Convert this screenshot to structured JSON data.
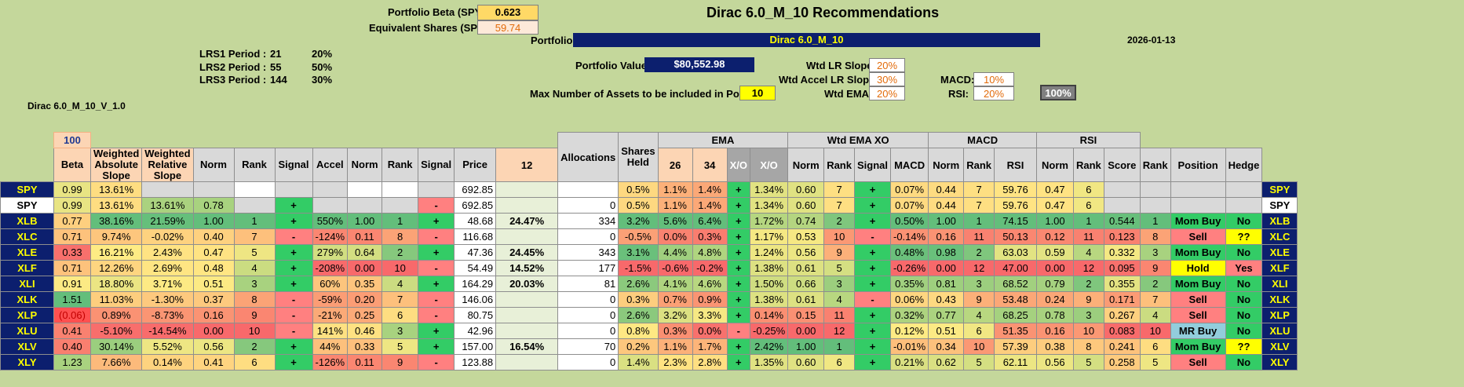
{
  "title": "Dirac 6.0_M_10 Recommendations",
  "date": "2026-01-13",
  "portfolio_beta_label": "Portfolio Beta (SPY):",
  "portfolio_beta": "0.623",
  "equiv_shares_label": "Equivalent Shares (SPY):",
  "equiv_shares": "59.74",
  "portfolio_label": "Portfolio:",
  "portfolio_name": "Dirac 6.0_M_10",
  "portfolio_value_label": "Portfolio Value:",
  "portfolio_value": "$80,552.98",
  "max_assets_label": "Max Number of Assets to be included in Portfolio:",
  "max_assets": "10",
  "version": "Dirac 6.0_M_10_V_1.0",
  "lrs": [
    {
      "label": "LRS1 Period :",
      "period": "21",
      "pct": "20%"
    },
    {
      "label": "LRS2 Period :",
      "period": "55",
      "pct": "50%"
    },
    {
      "label": "LRS3 Period :",
      "period": "144",
      "pct": "30%"
    }
  ],
  "weights": {
    "wtd_lr_slope_label": "Wtd LR Slope:",
    "wtd_lr_slope": "20%",
    "wtd_accel_label": "Wtd Accel LR Slope:",
    "wtd_accel": "30%",
    "wtd_ema_label": "Wtd EMA:",
    "wtd_ema": "20%",
    "macd_label": "MACD:",
    "macd": "10%",
    "rsi_label": "RSI:",
    "rsi": "20%",
    "total": "100%"
  },
  "headers": {
    "hundred": "100",
    "beta": "Beta",
    "wabs": "Weighted Absolute Slope",
    "wrel": "Weighted Relative Slope",
    "norm": "Norm",
    "rank": "Rank",
    "signal": "Signal",
    "accel": "Accel",
    "price": "Price",
    "alloc": "Allocations",
    "shares": "Shares Held",
    "ema": "EMA",
    "e12": "12",
    "e26": "26",
    "e34": "34",
    "xo": "X/O",
    "wtdema": "Wtd EMA XO",
    "macd": "MACD",
    "rsi": "RSI",
    "score": "Score",
    "position": "Position",
    "hedge": "Hedge"
  },
  "rows": [
    {
      "t": "SPY",
      "beta": "0.99",
      "wabs": "13.61%",
      "wrel": "",
      "n1": "",
      "r1": "",
      "s1": "",
      "acc": "",
      "n2": "",
      "r2": "",
      "s2": "",
      "price": "692.85",
      "alloc": "",
      "sh": "",
      "e12": "0.5%",
      "e26": "1.1%",
      "e34": "1.4%",
      "xo": "+",
      "wxo": "1.34%",
      "n3": "0.60",
      "r3": "7",
      "s3": "+",
      "macd": "0.07%",
      "n4": "0.44",
      "r4": "7",
      "rsi": "59.76",
      "n5": "0.47",
      "r5": "6",
      "score": "",
      "rk": "",
      "pos": "",
      "hedge": "",
      "top": true
    },
    {
      "t": "SPY",
      "beta": "0.99",
      "wabs": "13.61%",
      "wrel": "13.61%",
      "n1": "0.78",
      "r1": "",
      "s1": "+",
      "acc": "",
      "n2": "",
      "r2": "",
      "s2": "-",
      "price": "692.85",
      "alloc": "",
      "sh": "0",
      "e12": "0.5%",
      "e26": "1.1%",
      "e34": "1.4%",
      "xo": "+",
      "wxo": "1.34%",
      "n3": "0.60",
      "r3": "7",
      "s3": "+",
      "macd": "0.07%",
      "n4": "0.44",
      "r4": "7",
      "rsi": "59.76",
      "n5": "0.47",
      "r5": "6",
      "score": "",
      "rk": "",
      "pos": "",
      "hedge": "",
      "white": true
    },
    {
      "t": "XLB",
      "beta": "0.77",
      "wabs": "38.16%",
      "wrel": "21.59%",
      "n1": "1.00",
      "r1": "1",
      "s1": "+",
      "acc": "550%",
      "n2": "1.00",
      "r2": "1",
      "s2": "+",
      "price": "48.68",
      "alloc": "24.47%",
      "sh": "334",
      "e12": "3.2%",
      "e26": "5.6%",
      "e34": "6.4%",
      "xo": "+",
      "wxo": "1.72%",
      "n3": "0.74",
      "r3": "2",
      "s3": "+",
      "macd": "0.50%",
      "n4": "1.00",
      "r4": "1",
      "rsi": "74.15",
      "n5": "1.00",
      "r5": "1",
      "score": "0.544",
      "rk": "1",
      "pos": "Mom Buy",
      "hedge": "No"
    },
    {
      "t": "XLC",
      "beta": "0.71",
      "wabs": "9.74%",
      "wrel": "-0.02%",
      "n1": "0.40",
      "r1": "7",
      "s1": "-",
      "acc": "-124%",
      "n2": "0.11",
      "r2": "8",
      "s2": "-",
      "price": "116.68",
      "alloc": "",
      "sh": "0",
      "e12": "-0.5%",
      "e26": "0.0%",
      "e34": "0.3%",
      "xo": "+",
      "wxo": "1.17%",
      "n3": "0.53",
      "r3": "10",
      "s3": "-",
      "macd": "-0.14%",
      "n4": "0.16",
      "r4": "11",
      "rsi": "50.13",
      "n5": "0.12",
      "r5": "11",
      "score": "0.123",
      "rk": "8",
      "pos": "Sell",
      "hedge": "??"
    },
    {
      "t": "XLE",
      "beta": "0.33",
      "wabs": "16.21%",
      "wrel": "2.43%",
      "n1": "0.47",
      "r1": "5",
      "s1": "+",
      "acc": "279%",
      "n2": "0.64",
      "r2": "2",
      "s2": "+",
      "price": "47.36",
      "alloc": "24.45%",
      "sh": "343",
      "e12": "3.1%",
      "e26": "4.4%",
      "e34": "4.8%",
      "xo": "+",
      "wxo": "1.24%",
      "n3": "0.56",
      "r3": "9",
      "s3": "+",
      "macd": "0.48%",
      "n4": "0.98",
      "r4": "2",
      "rsi": "63.03",
      "n5": "0.59",
      "r5": "4",
      "score": "0.332",
      "rk": "3",
      "pos": "Mom Buy",
      "hedge": "No"
    },
    {
      "t": "XLF",
      "beta": "0.71",
      "wabs": "12.26%",
      "wrel": "2.69%",
      "n1": "0.48",
      "r1": "4",
      "s1": "+",
      "acc": "-208%",
      "n2": "0.00",
      "r2": "10",
      "s2": "-",
      "price": "54.49",
      "alloc": "14.52%",
      "sh": "177",
      "e12": "-1.5%",
      "e26": "-0.6%",
      "e34": "-0.2%",
      "xo": "+",
      "wxo": "1.38%",
      "n3": "0.61",
      "r3": "5",
      "s3": "+",
      "macd": "-0.26%",
      "n4": "0.00",
      "r4": "12",
      "rsi": "47.00",
      "n5": "0.00",
      "r5": "12",
      "score": "0.095",
      "rk": "9",
      "pos": "Hold",
      "hedge": "Yes"
    },
    {
      "t": "XLI",
      "beta": "0.91",
      "wabs": "18.80%",
      "wrel": "3.71%",
      "n1": "0.51",
      "r1": "3",
      "s1": "+",
      "acc": "60%",
      "n2": "0.35",
      "r2": "4",
      "s2": "+",
      "price": "164.29",
      "alloc": "20.03%",
      "sh": "81",
      "e12": "2.6%",
      "e26": "4.1%",
      "e34": "4.6%",
      "xo": "+",
      "wxo": "1.50%",
      "n3": "0.66",
      "r3": "3",
      "s3": "+",
      "macd": "0.35%",
      "n4": "0.81",
      "r4": "3",
      "rsi": "68.52",
      "n5": "0.79",
      "r5": "2",
      "score": "0.355",
      "rk": "2",
      "pos": "Mom Buy",
      "hedge": "No"
    },
    {
      "t": "XLK",
      "beta": "1.51",
      "wabs": "11.03%",
      "wrel": "-1.30%",
      "n1": "0.37",
      "r1": "8",
      "s1": "-",
      "acc": "-59%",
      "n2": "0.20",
      "r2": "7",
      "s2": "-",
      "price": "146.06",
      "alloc": "",
      "sh": "0",
      "e12": "0.3%",
      "e26": "0.7%",
      "e34": "0.9%",
      "xo": "+",
      "wxo": "1.38%",
      "n3": "0.61",
      "r3": "4",
      "s3": "-",
      "macd": "0.06%",
      "n4": "0.43",
      "r4": "9",
      "rsi": "53.48",
      "n5": "0.24",
      "r5": "9",
      "score": "0.171",
      "rk": "7",
      "pos": "Sell",
      "hedge": "No"
    },
    {
      "t": "XLP",
      "beta": "(0.06)",
      "wabs": "0.89%",
      "wrel": "-8.73%",
      "n1": "0.16",
      "r1": "9",
      "s1": "-",
      "acc": "-21%",
      "n2": "0.25",
      "r2": "6",
      "s2": "-",
      "price": "80.75",
      "alloc": "",
      "sh": "0",
      "e12": "2.6%",
      "e26": "3.2%",
      "e34": "3.3%",
      "xo": "+",
      "wxo": "0.14%",
      "n3": "0.15",
      "r3": "11",
      "s3": "+",
      "macd": "0.32%",
      "n4": "0.77",
      "r4": "4",
      "rsi": "68.25",
      "n5": "0.78",
      "r5": "3",
      "score": "0.267",
      "rk": "4",
      "pos": "Sell",
      "hedge": "No"
    },
    {
      "t": "XLU",
      "beta": "0.41",
      "wabs": "-5.10%",
      "wrel": "-14.54%",
      "n1": "0.00",
      "r1": "10",
      "s1": "-",
      "acc": "141%",
      "n2": "0.46",
      "r2": "3",
      "s2": "+",
      "price": "42.96",
      "alloc": "",
      "sh": "0",
      "e12": "0.8%",
      "e26": "0.3%",
      "e34": "0.0%",
      "xo": "-",
      "wxo": "-0.25%",
      "n3": "0.00",
      "r3": "12",
      "s3": "+",
      "macd": "0.12%",
      "n4": "0.51",
      "r4": "6",
      "rsi": "51.35",
      "n5": "0.16",
      "r5": "10",
      "score": "0.083",
      "rk": "10",
      "pos": "MR Buy",
      "hedge": "No"
    },
    {
      "t": "XLV",
      "beta": "0.40",
      "wabs": "30.14%",
      "wrel": "5.52%",
      "n1": "0.56",
      "r1": "2",
      "s1": "+",
      "acc": "44%",
      "n2": "0.33",
      "r2": "5",
      "s2": "+",
      "price": "157.00",
      "alloc": "16.54%",
      "sh": "70",
      "e12": "0.2%",
      "e26": "1.1%",
      "e34": "1.7%",
      "xo": "+",
      "wxo": "2.42%",
      "n3": "1.00",
      "r3": "1",
      "s3": "+",
      "macd": "-0.01%",
      "n4": "0.34",
      "r4": "10",
      "rsi": "57.39",
      "n5": "0.38",
      "r5": "8",
      "score": "0.241",
      "rk": "6",
      "pos": "Mom Buy",
      "hedge": "??"
    },
    {
      "t": "XLY",
      "beta": "1.23",
      "wabs": "7.66%",
      "wrel": "0.14%",
      "n1": "0.41",
      "r1": "6",
      "s1": "+",
      "acc": "-126%",
      "n2": "0.11",
      "r2": "9",
      "s2": "-",
      "price": "123.88",
      "alloc": "",
      "sh": "0",
      "e12": "1.4%",
      "e26": "2.3%",
      "e34": "2.8%",
      "xo": "+",
      "wxo": "1.35%",
      "n3": "0.60",
      "r3": "6",
      "s3": "+",
      "macd": "0.21%",
      "n4": "0.62",
      "r4": "5",
      "rsi": "62.11",
      "n5": "0.56",
      "r5": "5",
      "score": "0.258",
      "rk": "5",
      "pos": "Sell",
      "hedge": "No"
    }
  ]
}
